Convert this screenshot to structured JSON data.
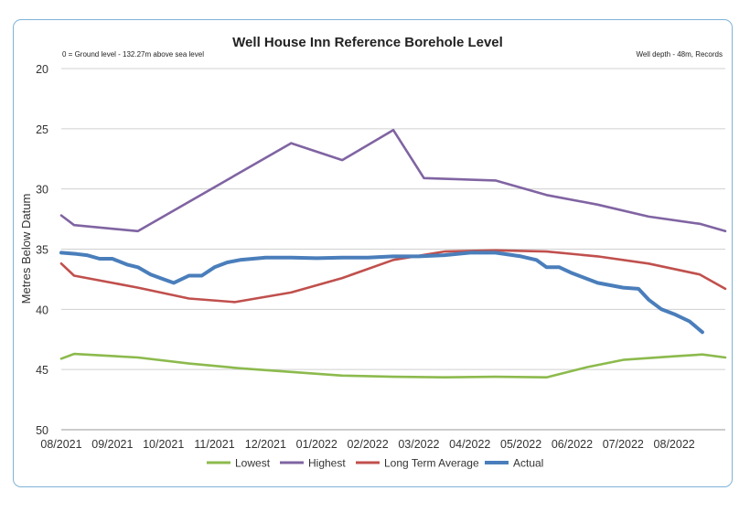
{
  "chart_data": {
    "type": "line",
    "title": "Well House Inn Reference Borehole Level",
    "note_left": "0 = Ground level - 132.27m above sea level",
    "note_right": "Well depth - 48m, Records",
    "ylabel": "Metres Below Datum",
    "xlabel": "",
    "ylim": [
      20,
      50
    ],
    "y_inverted": true,
    "yticks": [
      20,
      25,
      30,
      35,
      40,
      45,
      50
    ],
    "x_tick_labels": [
      "08/2021",
      "09/2021",
      "10/2021",
      "11/2021",
      "12/2021",
      "01/2022",
      "02/2022",
      "03/2022",
      "04/2022",
      "05/2022",
      "06/2022",
      "07/2022",
      "08/2022"
    ],
    "x_range_months": [
      0,
      13
    ],
    "grid": "horizontal",
    "legend_position": "bottom",
    "series": [
      {
        "name": "Lowest",
        "color": "#8cba4d",
        "x": [
          0,
          0.25,
          1.5,
          2.5,
          3.5,
          4.5,
          5.5,
          6.5,
          7.5,
          8.5,
          9.5,
          10.3,
          11,
          12,
          12.55,
          13
        ],
        "values": [
          44.1,
          43.7,
          44.0,
          44.5,
          44.9,
          45.2,
          45.5,
          45.6,
          45.65,
          45.6,
          45.65,
          44.8,
          44.2,
          43.9,
          43.75,
          44.0
        ]
      },
      {
        "name": "Highest",
        "color": "#8064a2",
        "x": [
          0,
          0.25,
          1.5,
          4.5,
          5.5,
          6.5,
          7.1,
          8.5,
          9.5,
          10.5,
          11.5,
          12.5,
          13
        ],
        "values": [
          32.2,
          33.0,
          33.5,
          26.2,
          27.6,
          25.1,
          29.1,
          29.3,
          30.5,
          31.3,
          32.3,
          32.9,
          33.5
        ]
      },
      {
        "name": "Long Term Average",
        "color": "#c0504d",
        "x": [
          0,
          0.25,
          1.5,
          2.5,
          3.4,
          4.5,
          5.5,
          6.5,
          7.5,
          8.5,
          9.5,
          10.5,
          11.5,
          12.5,
          13
        ],
        "values": [
          36.2,
          37.2,
          38.2,
          39.1,
          39.4,
          38.6,
          37.4,
          35.9,
          35.2,
          35.1,
          35.2,
          35.6,
          36.2,
          37.1,
          38.3
        ]
      },
      {
        "name": "Actual",
        "color": "#4a7ebb",
        "x": [
          0,
          0.3,
          0.5,
          0.75,
          1.0,
          1.3,
          1.5,
          1.75,
          2.0,
          2.2,
          2.5,
          2.75,
          3.0,
          3.25,
          3.5,
          4.0,
          4.5,
          5.0,
          5.5,
          6.0,
          6.5,
          7.0,
          7.5,
          8.0,
          8.5,
          9.0,
          9.3,
          9.5,
          9.75,
          10.0,
          10.5,
          11.0,
          11.3,
          11.5,
          11.75,
          12.0,
          12.3,
          12.55
        ],
        "values": [
          35.3,
          35.4,
          35.5,
          35.8,
          35.8,
          36.3,
          36.5,
          37.1,
          37.5,
          37.8,
          37.2,
          37.2,
          36.5,
          36.1,
          35.9,
          35.7,
          35.7,
          35.75,
          35.7,
          35.7,
          35.6,
          35.6,
          35.5,
          35.3,
          35.3,
          35.6,
          35.9,
          36.5,
          36.5,
          37.0,
          37.8,
          38.2,
          38.3,
          39.2,
          40.0,
          40.4,
          41.0,
          41.9
        ]
      }
    ]
  }
}
